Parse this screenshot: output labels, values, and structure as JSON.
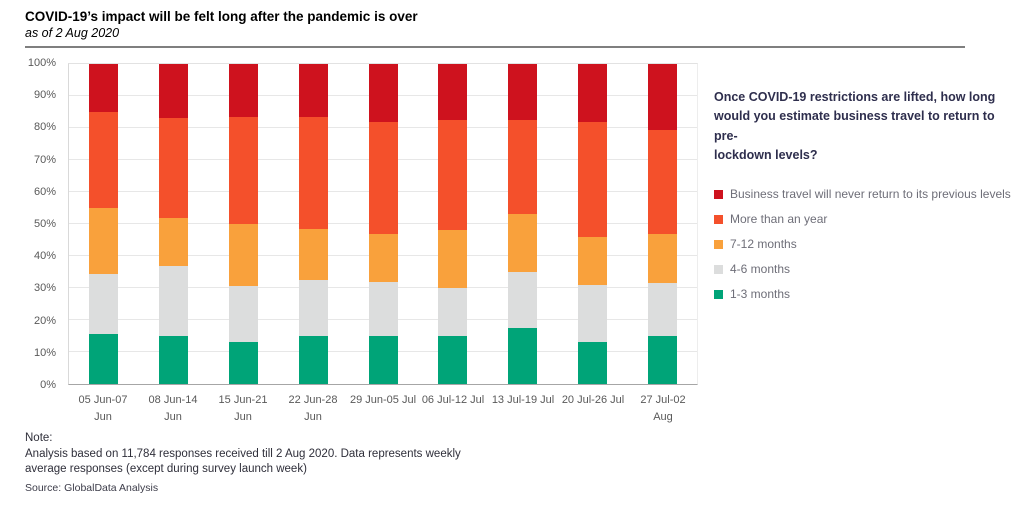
{
  "header": {
    "title": "COVID-19’s impact will be felt long after the pandemic is over",
    "subtitle": "as of 2 Aug 2020"
  },
  "legend": {
    "question": "Once COVID-19 restrictions are lifted, how long\nwould you estimate business travel to return to pre-\nlockdown levels?"
  },
  "note": {
    "label": "Note:",
    "text": "Analysis based on 11,784 responses received till 2 Aug 2020. Data represents weekly\naverage responses (except during survey launch week)",
    "source": "Source: GlobalData Analysis"
  },
  "chart_data": {
    "type": "bar",
    "stacked": true,
    "title": "COVID-19’s impact will be felt long after the pandemic is over",
    "subtitle": "as of 2 Aug 2020",
    "xlabel": "",
    "ylabel": "",
    "ylim": [
      0,
      100
    ],
    "grid": true,
    "legend_position": "right",
    "y_ticks": [
      "0%",
      "10%",
      "20%",
      "30%",
      "40%",
      "50%",
      "60%",
      "70%",
      "80%",
      "90%",
      "100%"
    ],
    "categories": [
      "05 Jun-07\nJun",
      "08 Jun-14\nJun",
      "15 Jun-21\nJun",
      "22 Jun-28\nJun",
      "29 Jun-05 Jul",
      "06 Jul-12 Jul",
      "13 Jul-19 Jul",
      "20 Jul-26 Jul",
      "27 Jul-02\nAug"
    ],
    "series": [
      {
        "name": "1-3 months",
        "color": "#00a478",
        "values": [
          15.5,
          15.0,
          13.0,
          15.0,
          15.0,
          15.0,
          17.5,
          13.0,
          15.0
        ]
      },
      {
        "name": "4-6 months",
        "color": "#dcdddd",
        "values": [
          19.0,
          22.0,
          17.5,
          17.5,
          17.0,
          15.0,
          17.5,
          18.0,
          16.5
        ]
      },
      {
        "name": "7-12 months",
        "color": "#f9a13c",
        "values": [
          20.5,
          15.0,
          19.5,
          16.0,
          15.0,
          18.0,
          18.0,
          15.0,
          15.5
        ]
      },
      {
        "name": "More than an year",
        "color": "#f4502b",
        "values": [
          30.0,
          31.0,
          33.5,
          35.0,
          35.0,
          34.5,
          29.5,
          36.0,
          32.5
        ]
      },
      {
        "name": "Business travel will never return to its previous levels",
        "color": "#ce121e",
        "values": [
          15.0,
          17.0,
          16.5,
          16.5,
          18.0,
          17.5,
          17.5,
          18.0,
          20.5
        ]
      }
    ]
  }
}
